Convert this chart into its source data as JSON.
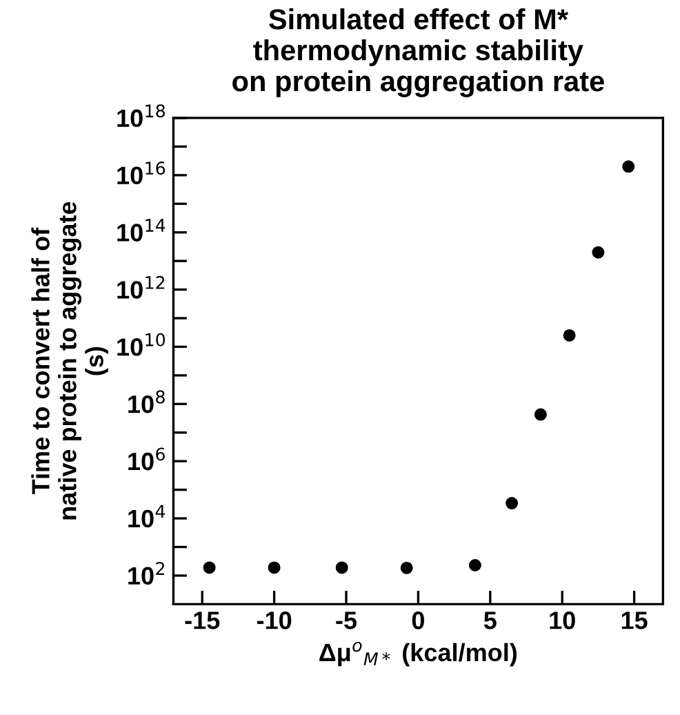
{
  "chart_data": {
    "type": "scatter",
    "title": "Simulated effect of M*\nthermodynamic stability\non protein aggregation rate",
    "xlabel": "Δμ$^{o}$$_{M*}$ (kcal/mol)",
    "ylabel": "Time to convert half of\nnative protein to aggregate\n(s)",
    "x": [
      -14.5,
      -10,
      -5.3,
      -0.8,
      3.95,
      6.5,
      8.5,
      10.5,
      12.5,
      14.6
    ],
    "series": [
      {
        "color": "#000000",
        "values": [
          190,
          190,
          190,
          185,
          230,
          34000,
          43000000,
          25000000000,
          20000000000000,
          20000000000000000
        ]
      }
    ],
    "log": "y",
    "marker": "circle",
    "grid": false,
    "xlim": [
      -17,
      17
    ],
    "xticks": [
      -15,
      -10,
      -5,
      0,
      5,
      10,
      15
    ],
    "ylim": [
      10,
      1e+18
    ],
    "yticks": [
      {
        "value": 100,
        "label": "10$^{2}$"
      },
      {
        "value": 1000,
        "label": null
      },
      {
        "value": 10000,
        "label": "10$^{4}$"
      },
      {
        "value": 100000,
        "label": null
      },
      {
        "value": 1000000,
        "label": "10$^{6}$"
      },
      {
        "value": 10000000,
        "label": null
      },
      {
        "value": 100000000,
        "label": "10$^{8}$"
      },
      {
        "value": 1000000000,
        "label": null
      },
      {
        "value": 10000000000,
        "label": "10$^{10}$"
      },
      {
        "value": 100000000000,
        "label": null
      },
      {
        "value": 1000000000000,
        "label": "10$^{12}$"
      },
      {
        "value": 10000000000000,
        "label": null
      },
      {
        "value": 100000000000000,
        "label": "10$^{14}$"
      },
      {
        "value": 1000000000000000,
        "label": null
      },
      {
        "value": 10000000000000000,
        "label": "10$^{16}$"
      },
      {
        "value": 100000000000000000,
        "label": null
      },
      {
        "value": 1000000000000000000,
        "label": "10$^{18}$"
      }
    ]
  }
}
